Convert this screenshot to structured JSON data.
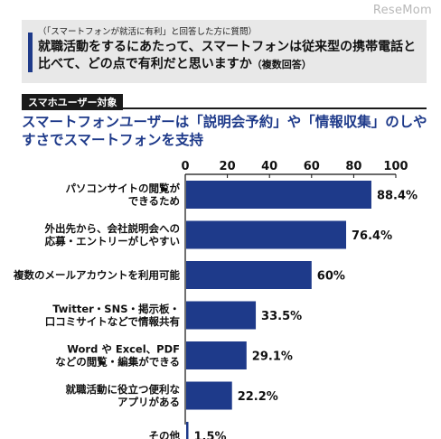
{
  "watermark": "ReseMom",
  "question": {
    "note": "（「スマートフォンが就活に有利」と回答した方に質問）",
    "text": "就職活動をするにあたって、スマートフォンは従来型の携帯電話と比べて、どの点で有利だと思いますか",
    "suffix": "（複数回答）"
  },
  "badge": "スマホユーザー対象",
  "headline": "スマートフォンユーザーは「説明会予約」や「情報収集」のしやすさでスマートフォンを支持",
  "colors": {
    "bar": "#1e3a8a",
    "accent": "#1e3a8a"
  },
  "chart_data": {
    "type": "bar",
    "orientation": "horizontal",
    "categories": [
      [
        "パソコンサイトの閲覧が",
        "できるため"
      ],
      [
        "外出先から、会社説明会への",
        "応募・エントリーがしやすい"
      ],
      [
        "複数のメールアカウントを利用可能"
      ],
      [
        "Twitter・SNS・掲示板・",
        "口コミサイトなどで情報共有"
      ],
      [
        "Word や Excel、PDF",
        "などの閲覧・編集ができる"
      ],
      [
        "就職活動に役立つ便利な",
        "アプリがある"
      ],
      [
        "その他"
      ]
    ],
    "values": [
      88.4,
      76.4,
      60,
      33.5,
      29.1,
      22.2,
      1.5
    ],
    "value_labels": [
      "88.4%",
      "76.4%",
      "60%",
      "33.5%",
      "29.1%",
      "22.2%",
      "1.5%"
    ],
    "xlim": [
      0,
      100
    ],
    "xticks": [
      0,
      20,
      40,
      60,
      80,
      100
    ],
    "xtick_labels": [
      "0",
      "20",
      "40",
      "60",
      "80",
      "100"
    ],
    "title": "",
    "xlabel": "",
    "ylabel": "",
    "grid": false
  }
}
